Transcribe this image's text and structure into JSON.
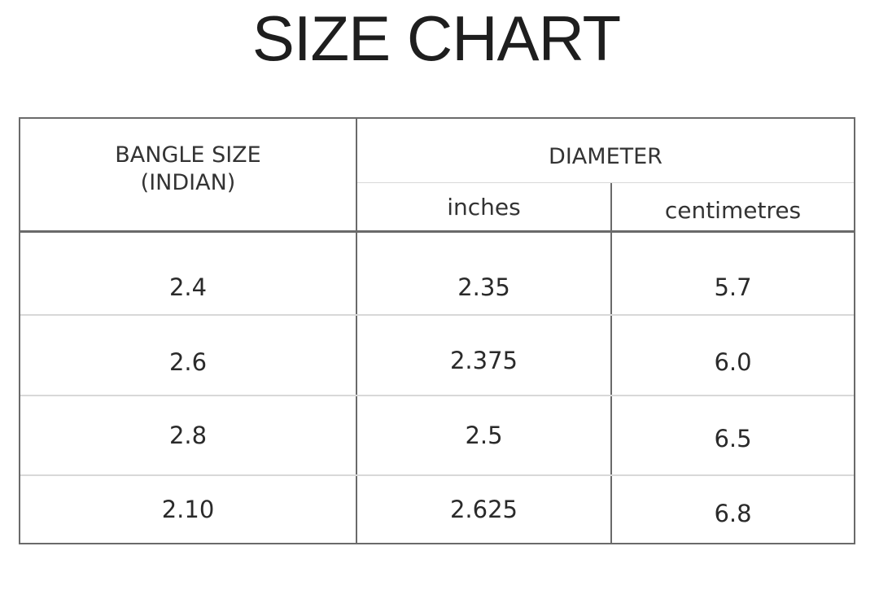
{
  "title": "SIZE CHART",
  "table": {
    "headers": {
      "size_line1": "BANGLE SIZE",
      "size_line2": "(INDIAN)",
      "diameter": "DIAMETER",
      "inches": "inches",
      "centimetres": "centimetres"
    },
    "rows": [
      {
        "size": "2.4",
        "inches": "2.35",
        "cm": "5.7"
      },
      {
        "size": "2.6",
        "inches": "2.375",
        "cm": "6.0"
      },
      {
        "size": "2.8",
        "inches": "2.5",
        "cm": "6.5"
      },
      {
        "size": "2.10",
        "inches": "2.625",
        "cm": "6.8"
      }
    ]
  }
}
